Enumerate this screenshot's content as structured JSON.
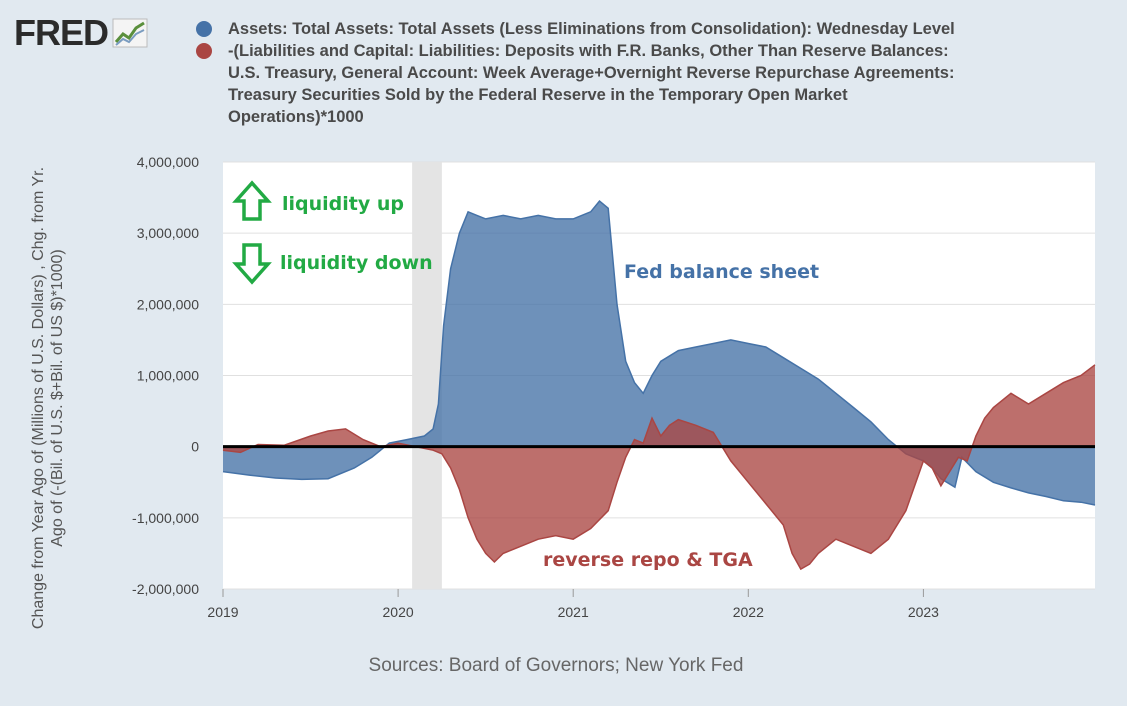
{
  "logo": {
    "text": "FRED"
  },
  "legend": {
    "series1": {
      "label": "Assets: Total Assets: Total Assets (Less Eliminations from Consolidation): Wednesday Level",
      "color": "#4572a7"
    },
    "series2": {
      "label_lines": [
        "-(Liabilities and Capital: Liabilities: Deposits with F.R. Banks, Other Than Reserve Balances:",
        "U.S. Treasury, General Account: Week Average+Overnight Reverse Repurchase Agreements:",
        "Treasury Securities Sold by the Federal Reserve in the Temporary Open Market",
        "Operations)*1000"
      ],
      "color": "#aa4643"
    }
  },
  "sources": "Sources: Board of Governors; New York Fed",
  "chart_data": {
    "type": "area",
    "ylabel_lines": [
      "Change from Year Ago of (Millions of U.S. Dollars) , Chg. from Yr.",
      "Ago of (-(Bil. of U.S. $+Bil. of US $)*1000)"
    ],
    "ylim": [
      -2000000,
      4000000
    ],
    "xlim": [
      2019.0,
      2023.98
    ],
    "yticks": [
      {
        "value": 4000000,
        "label": "4,000,000"
      },
      {
        "value": 3000000,
        "label": "3,000,000"
      },
      {
        "value": 2000000,
        "label": "2,000,000"
      },
      {
        "value": 1000000,
        "label": "1,000,000"
      },
      {
        "value": 0,
        "label": "0"
      },
      {
        "value": -1000000,
        "label": "-1,000,000"
      },
      {
        "value": -2000000,
        "label": "-2,000,000"
      }
    ],
    "xticks": [
      {
        "value": 2019,
        "label": "2019"
      },
      {
        "value": 2020,
        "label": "2020"
      },
      {
        "value": 2021,
        "label": "2021"
      },
      {
        "value": 2022,
        "label": "2022"
      },
      {
        "value": 2023,
        "label": "2023"
      }
    ],
    "recession": [
      2020.08,
      2020.25
    ],
    "zero_line": true,
    "series": [
      {
        "color": "#4572a7",
        "x": [
          2019.0,
          2019.15,
          2019.3,
          2019.45,
          2019.6,
          2019.75,
          2019.85,
          2019.95,
          2020.05,
          2020.15,
          2020.2,
          2020.23,
          2020.26,
          2020.3,
          2020.35,
          2020.4,
          2020.45,
          2020.5,
          2020.6,
          2020.7,
          2020.8,
          2020.9,
          2021.0,
          2021.1,
          2021.15,
          2021.2,
          2021.25,
          2021.3,
          2021.35,
          2021.4,
          2021.45,
          2021.5,
          2021.6,
          2021.7,
          2021.8,
          2021.9,
          2022.0,
          2022.1,
          2022.2,
          2022.3,
          2022.4,
          2022.5,
          2022.6,
          2022.7,
          2022.8,
          2022.9,
          2023.0,
          2023.05,
          2023.1,
          2023.18,
          2023.22,
          2023.3,
          2023.4,
          2023.5,
          2023.6,
          2023.7,
          2023.8,
          2023.9,
          2023.98
        ],
        "values": [
          -350000,
          -400000,
          -440000,
          -460000,
          -450000,
          -300000,
          -150000,
          50000,
          100000,
          150000,
          250000,
          600000,
          1700000,
          2500000,
          3000000,
          3300000,
          3250000,
          3200000,
          3250000,
          3200000,
          3250000,
          3200000,
          3200000,
          3300000,
          3450000,
          3350000,
          2000000,
          1200000,
          900000,
          750000,
          1000000,
          1200000,
          1350000,
          1400000,
          1450000,
          1500000,
          1450000,
          1400000,
          1250000,
          1100000,
          950000,
          750000,
          550000,
          350000,
          100000,
          -100000,
          -200000,
          -300000,
          -450000,
          -570000,
          -150000,
          -350000,
          -500000,
          -580000,
          -650000,
          -700000,
          -760000,
          -780000,
          -820000
        ]
      },
      {
        "color": "#aa4643",
        "x": [
          2019.0,
          2019.1,
          2019.2,
          2019.35,
          2019.5,
          2019.6,
          2019.7,
          2019.8,
          2019.9,
          2020.0,
          2020.1,
          2020.2,
          2020.25,
          2020.3,
          2020.35,
          2020.4,
          2020.45,
          2020.5,
          2020.55,
          2020.6,
          2020.7,
          2020.8,
          2020.9,
          2021.0,
          2021.1,
          2021.2,
          2021.25,
          2021.3,
          2021.35,
          2021.4,
          2021.45,
          2021.5,
          2021.55,
          2021.6,
          2021.7,
          2021.8,
          2021.9,
          2022.0,
          2022.1,
          2022.2,
          2022.25,
          2022.3,
          2022.35,
          2022.4,
          2022.5,
          2022.6,
          2022.7,
          2022.8,
          2022.9,
          2023.0,
          2023.05,
          2023.1,
          2023.2,
          2023.25,
          2023.3,
          2023.35,
          2023.4,
          2023.5,
          2023.6,
          2023.7,
          2023.8,
          2023.9,
          2023.98
        ],
        "values": [
          -50000,
          -80000,
          30000,
          20000,
          150000,
          220000,
          250000,
          100000,
          0,
          50000,
          0,
          -50000,
          -100000,
          -300000,
          -600000,
          -1000000,
          -1300000,
          -1500000,
          -1620000,
          -1500000,
          -1400000,
          -1300000,
          -1250000,
          -1300000,
          -1150000,
          -900000,
          -500000,
          -150000,
          100000,
          50000,
          400000,
          150000,
          300000,
          380000,
          300000,
          200000,
          -200000,
          -500000,
          -800000,
          -1100000,
          -1500000,
          -1720000,
          -1650000,
          -1500000,
          -1300000,
          -1400000,
          -1500000,
          -1300000,
          -900000,
          -200000,
          -300000,
          -550000,
          -150000,
          -200000,
          150000,
          400000,
          550000,
          750000,
          600000,
          750000,
          900000,
          1000000,
          1150000
        ]
      }
    ],
    "annotations": [
      {
        "text": "liquidity up",
        "color": "#22aa44",
        "arrow": "up"
      },
      {
        "text": "liquidity down",
        "color": "#22aa44",
        "arrow": "down"
      },
      {
        "text": "Fed balance sheet",
        "color": "#4572a7"
      },
      {
        "text": "reverse repo & TGA",
        "color": "#aa4643"
      }
    ]
  }
}
